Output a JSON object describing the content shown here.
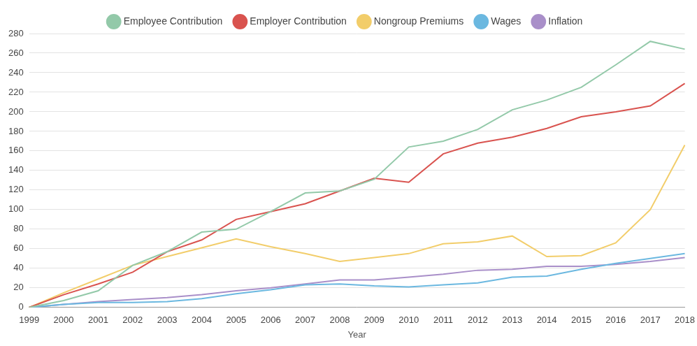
{
  "chart_data": {
    "type": "line",
    "x_label": "Year",
    "categories": [
      "1999",
      "2000",
      "2001",
      "2002",
      "2003",
      "2004",
      "2005",
      "2006",
      "2007",
      "2008",
      "2009",
      "2010",
      "2011",
      "2012",
      "2013",
      "2014",
      "2015",
      "2016",
      "2017",
      "2018"
    ],
    "series": [
      {
        "name": "Employee Contribution",
        "color": "#93c9a9",
        "values": [
          0,
          7,
          17,
          43,
          57,
          77,
          80,
          98,
          117,
          119,
          131,
          164,
          170,
          182,
          202,
          212,
          225,
          248,
          272,
          264
        ]
      },
      {
        "name": "Employer Contribution",
        "color": "#d9534f",
        "values": [
          0,
          13,
          24,
          36,
          57,
          69,
          90,
          98,
          106,
          119,
          132,
          128,
          157,
          168,
          174,
          183,
          195,
          200,
          206,
          229
        ]
      },
      {
        "name": "Nongroup Premiums",
        "color": "#f2cd6a",
        "values": [
          0,
          15,
          29,
          43,
          52,
          61,
          70,
          62,
          55,
          47,
          51,
          55,
          65,
          67,
          73,
          52,
          53,
          66,
          100,
          166
        ]
      },
      {
        "name": "Wages",
        "color": "#6bb8e0",
        "values": [
          0,
          3,
          5,
          5,
          6,
          9,
          14,
          18,
          23,
          24,
          22,
          21,
          23,
          25,
          31,
          32,
          39,
          45,
          50,
          55
        ]
      },
      {
        "name": "Inflation",
        "color": "#a98fc9",
        "values": [
          0,
          3,
          6,
          8,
          10,
          13,
          17,
          20,
          24,
          28,
          28,
          31,
          34,
          38,
          39,
          42,
          42,
          44,
          47,
          51
        ]
      }
    ],
    "ylim": [
      0,
      280
    ],
    "yticks": [
      0,
      20,
      40,
      60,
      80,
      100,
      120,
      140,
      160,
      180,
      200,
      220,
      240,
      260,
      280
    ],
    "grid": true,
    "legend": "top",
    "marker": "none"
  }
}
